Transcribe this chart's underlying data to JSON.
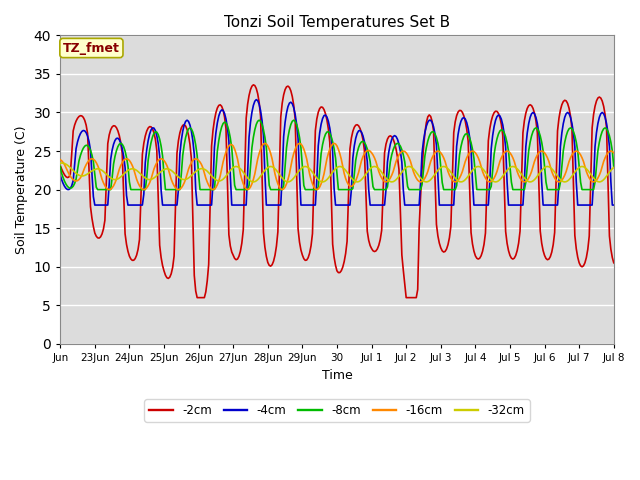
{
  "title": "Tonzi Soil Temperatures Set B",
  "xlabel": "Time",
  "ylabel": "Soil Temperature (C)",
  "ylim": [
    0,
    40
  ],
  "yticks": [
    0,
    5,
    10,
    15,
    20,
    25,
    30,
    35,
    40
  ],
  "xtick_labels": [
    "Jun",
    "23Jun",
    "24Jun",
    "25Jun",
    "26Jun",
    "27Jun",
    "28Jun",
    "29Jun",
    "30",
    "Jul 1",
    "Jul 2",
    "Jul 3",
    "Jul 4",
    "Jul 5",
    "Jul 6",
    "Jul 7",
    "Jul 8"
  ],
  "xtick_positions": [
    0,
    1,
    2,
    3,
    4,
    5,
    6,
    7,
    8,
    9,
    10,
    11,
    12,
    13,
    14,
    15,
    16
  ],
  "background_color": "#dcdcdc",
  "legend_label": "TZ_fmet",
  "legend_box_color": "#ffffcc",
  "legend_box_edge": "#aaa800",
  "legend_text_color": "#880000",
  "series_colors": {
    "-2cm": "#cc0000",
    "-4cm": "#0000cc",
    "-8cm": "#00bb00",
    "-16cm": "#ff8800",
    "-32cm": "#cccc00"
  },
  "series_linewidth": 1.2
}
